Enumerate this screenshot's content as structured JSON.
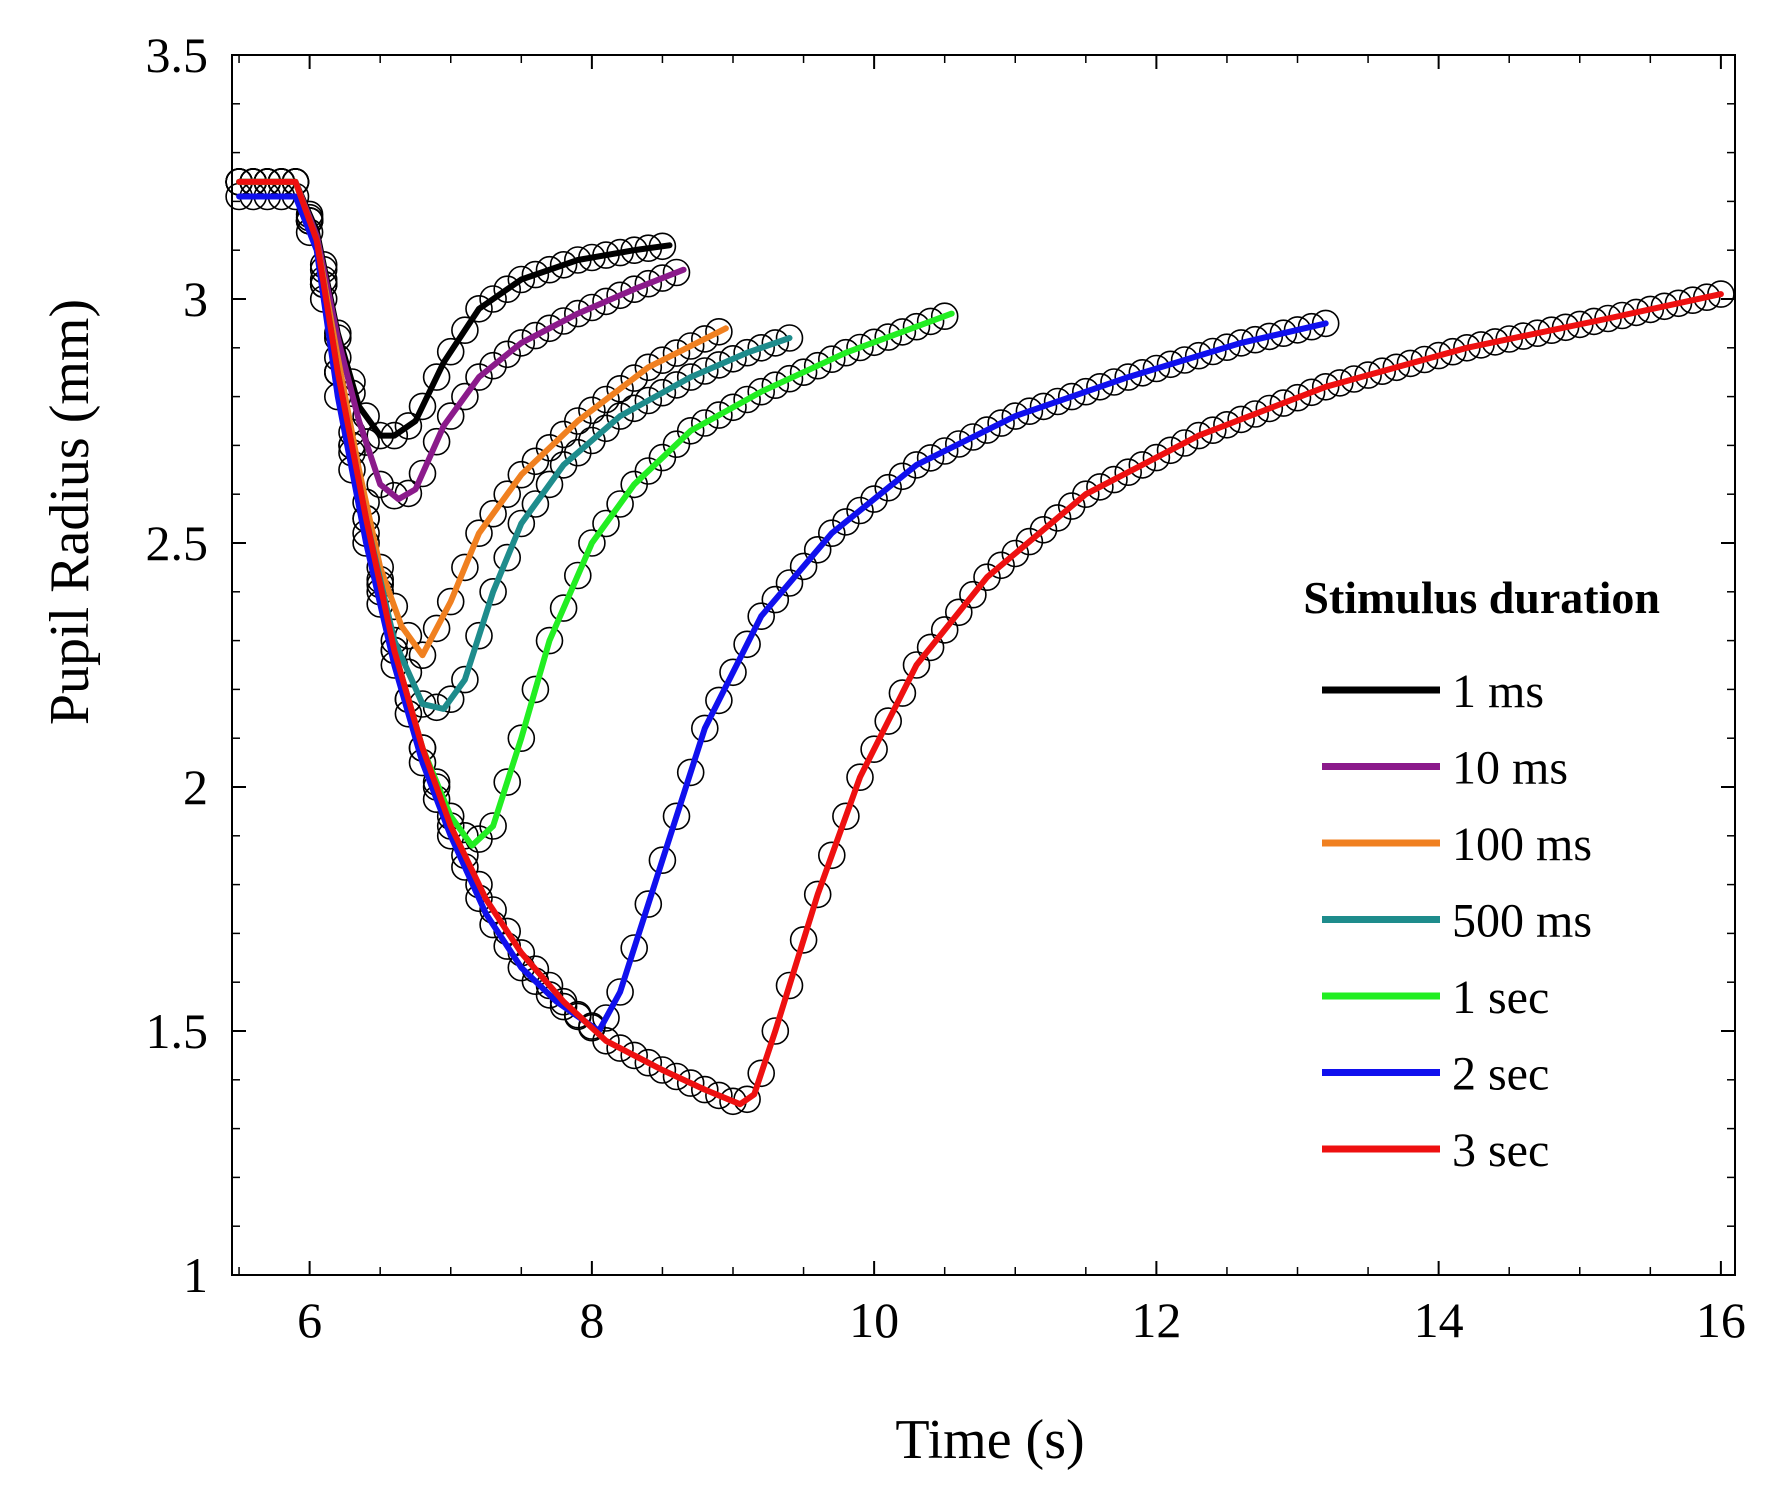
{
  "chart_data": {
    "type": "line",
    "xlabel": "Time (s)",
    "ylabel": "Pupil Radius (mm)",
    "xlim": [
      5.45,
      16.1
    ],
    "ylim": [
      1,
      3.5
    ],
    "xticks": [
      6,
      8,
      10,
      12,
      14,
      16
    ],
    "xtick_labels": [
      "6",
      "8",
      "10",
      "12",
      "14",
      "16"
    ],
    "yticks": [
      1,
      1.5,
      2,
      2.5,
      3,
      3.5
    ],
    "ytick_labels": [
      "1",
      "1.5",
      "2",
      "2.5",
      "3",
      "3.5"
    ],
    "grid": false,
    "legend": {
      "title": "Stimulus duration",
      "position": "right"
    },
    "marker_style": "open circles (measured), solid lines (model fit)",
    "series": [
      {
        "name": "1 ms",
        "color": "#000000",
        "x": [
          5.5,
          5.9,
          6.05,
          6.2,
          6.35,
          6.5,
          6.6,
          6.75,
          6.95,
          7.2,
          7.5,
          7.9,
          8.3,
          8.55
        ],
        "y": [
          3.24,
          3.24,
          3.14,
          2.93,
          2.78,
          2.72,
          2.72,
          2.75,
          2.87,
          2.98,
          3.04,
          3.08,
          3.1,
          3.11
        ]
      },
      {
        "name": "10 ms",
        "color": "#8B1A8B",
        "x": [
          5.5,
          5.9,
          6.05,
          6.2,
          6.35,
          6.5,
          6.63,
          6.75,
          6.95,
          7.2,
          7.5,
          7.9,
          8.3,
          8.65
        ],
        "y": [
          3.24,
          3.24,
          3.13,
          2.92,
          2.75,
          2.62,
          2.59,
          2.61,
          2.74,
          2.84,
          2.91,
          2.97,
          3.02,
          3.06
        ]
      },
      {
        "name": "100 ms",
        "color": "#F08020",
        "x": [
          5.5,
          5.9,
          6.05,
          6.2,
          6.35,
          6.5,
          6.65,
          6.8,
          7.0,
          7.2,
          7.5,
          7.9,
          8.4,
          8.95
        ],
        "y": [
          3.24,
          3.24,
          3.12,
          2.88,
          2.65,
          2.45,
          2.33,
          2.27,
          2.38,
          2.52,
          2.64,
          2.75,
          2.86,
          2.94
        ]
      },
      {
        "name": "500 ms",
        "color": "#1E8C8C",
        "x": [
          5.5,
          5.9,
          6.05,
          6.2,
          6.4,
          6.6,
          6.8,
          6.95,
          7.1,
          7.3,
          7.5,
          7.8,
          8.2,
          8.7,
          9.1,
          9.4
        ],
        "y": [
          3.24,
          3.24,
          3.12,
          2.85,
          2.55,
          2.3,
          2.17,
          2.16,
          2.22,
          2.4,
          2.54,
          2.66,
          2.76,
          2.84,
          2.89,
          2.92
        ]
      },
      {
        "name": "1 sec",
        "color": "#22EE22",
        "x": [
          5.5,
          5.9,
          6.05,
          6.2,
          6.4,
          6.6,
          6.8,
          7.0,
          7.15,
          7.3,
          7.5,
          7.7,
          8.0,
          8.3,
          8.7,
          9.2,
          9.8,
          10.55
        ],
        "y": [
          3.24,
          3.24,
          3.12,
          2.85,
          2.52,
          2.28,
          2.08,
          1.94,
          1.88,
          1.92,
          2.1,
          2.3,
          2.5,
          2.62,
          2.73,
          2.81,
          2.89,
          2.97
        ]
      },
      {
        "name": "2 sec",
        "color": "#1010EE",
        "x": [
          5.5,
          5.9,
          6.05,
          6.2,
          6.4,
          6.6,
          6.8,
          7.0,
          7.25,
          7.5,
          7.75,
          8.05,
          8.2,
          8.5,
          8.8,
          9.2,
          9.7,
          10.3,
          11.0,
          11.8,
          12.6,
          13.2
        ],
        "y": [
          3.21,
          3.21,
          3.1,
          2.8,
          2.5,
          2.25,
          2.05,
          1.9,
          1.74,
          1.63,
          1.56,
          1.5,
          1.58,
          1.85,
          2.12,
          2.35,
          2.52,
          2.66,
          2.76,
          2.84,
          2.91,
          2.95
        ]
      },
      {
        "name": "3 sec",
        "color": "#EE1010",
        "x": [
          5.5,
          5.9,
          6.05,
          6.2,
          6.4,
          6.6,
          6.8,
          7.0,
          7.25,
          7.5,
          7.8,
          8.1,
          8.5,
          8.8,
          9.05,
          9.15,
          9.3,
          9.6,
          9.9,
          10.3,
          10.8,
          11.5,
          12.3,
          13.2,
          14.2,
          15.2,
          16.0
        ],
        "y": [
          3.24,
          3.24,
          3.12,
          2.85,
          2.55,
          2.28,
          2.08,
          1.92,
          1.77,
          1.66,
          1.56,
          1.48,
          1.42,
          1.38,
          1.35,
          1.37,
          1.5,
          1.78,
          2.02,
          2.25,
          2.43,
          2.6,
          2.72,
          2.82,
          2.9,
          2.96,
          3.01
        ]
      }
    ]
  }
}
